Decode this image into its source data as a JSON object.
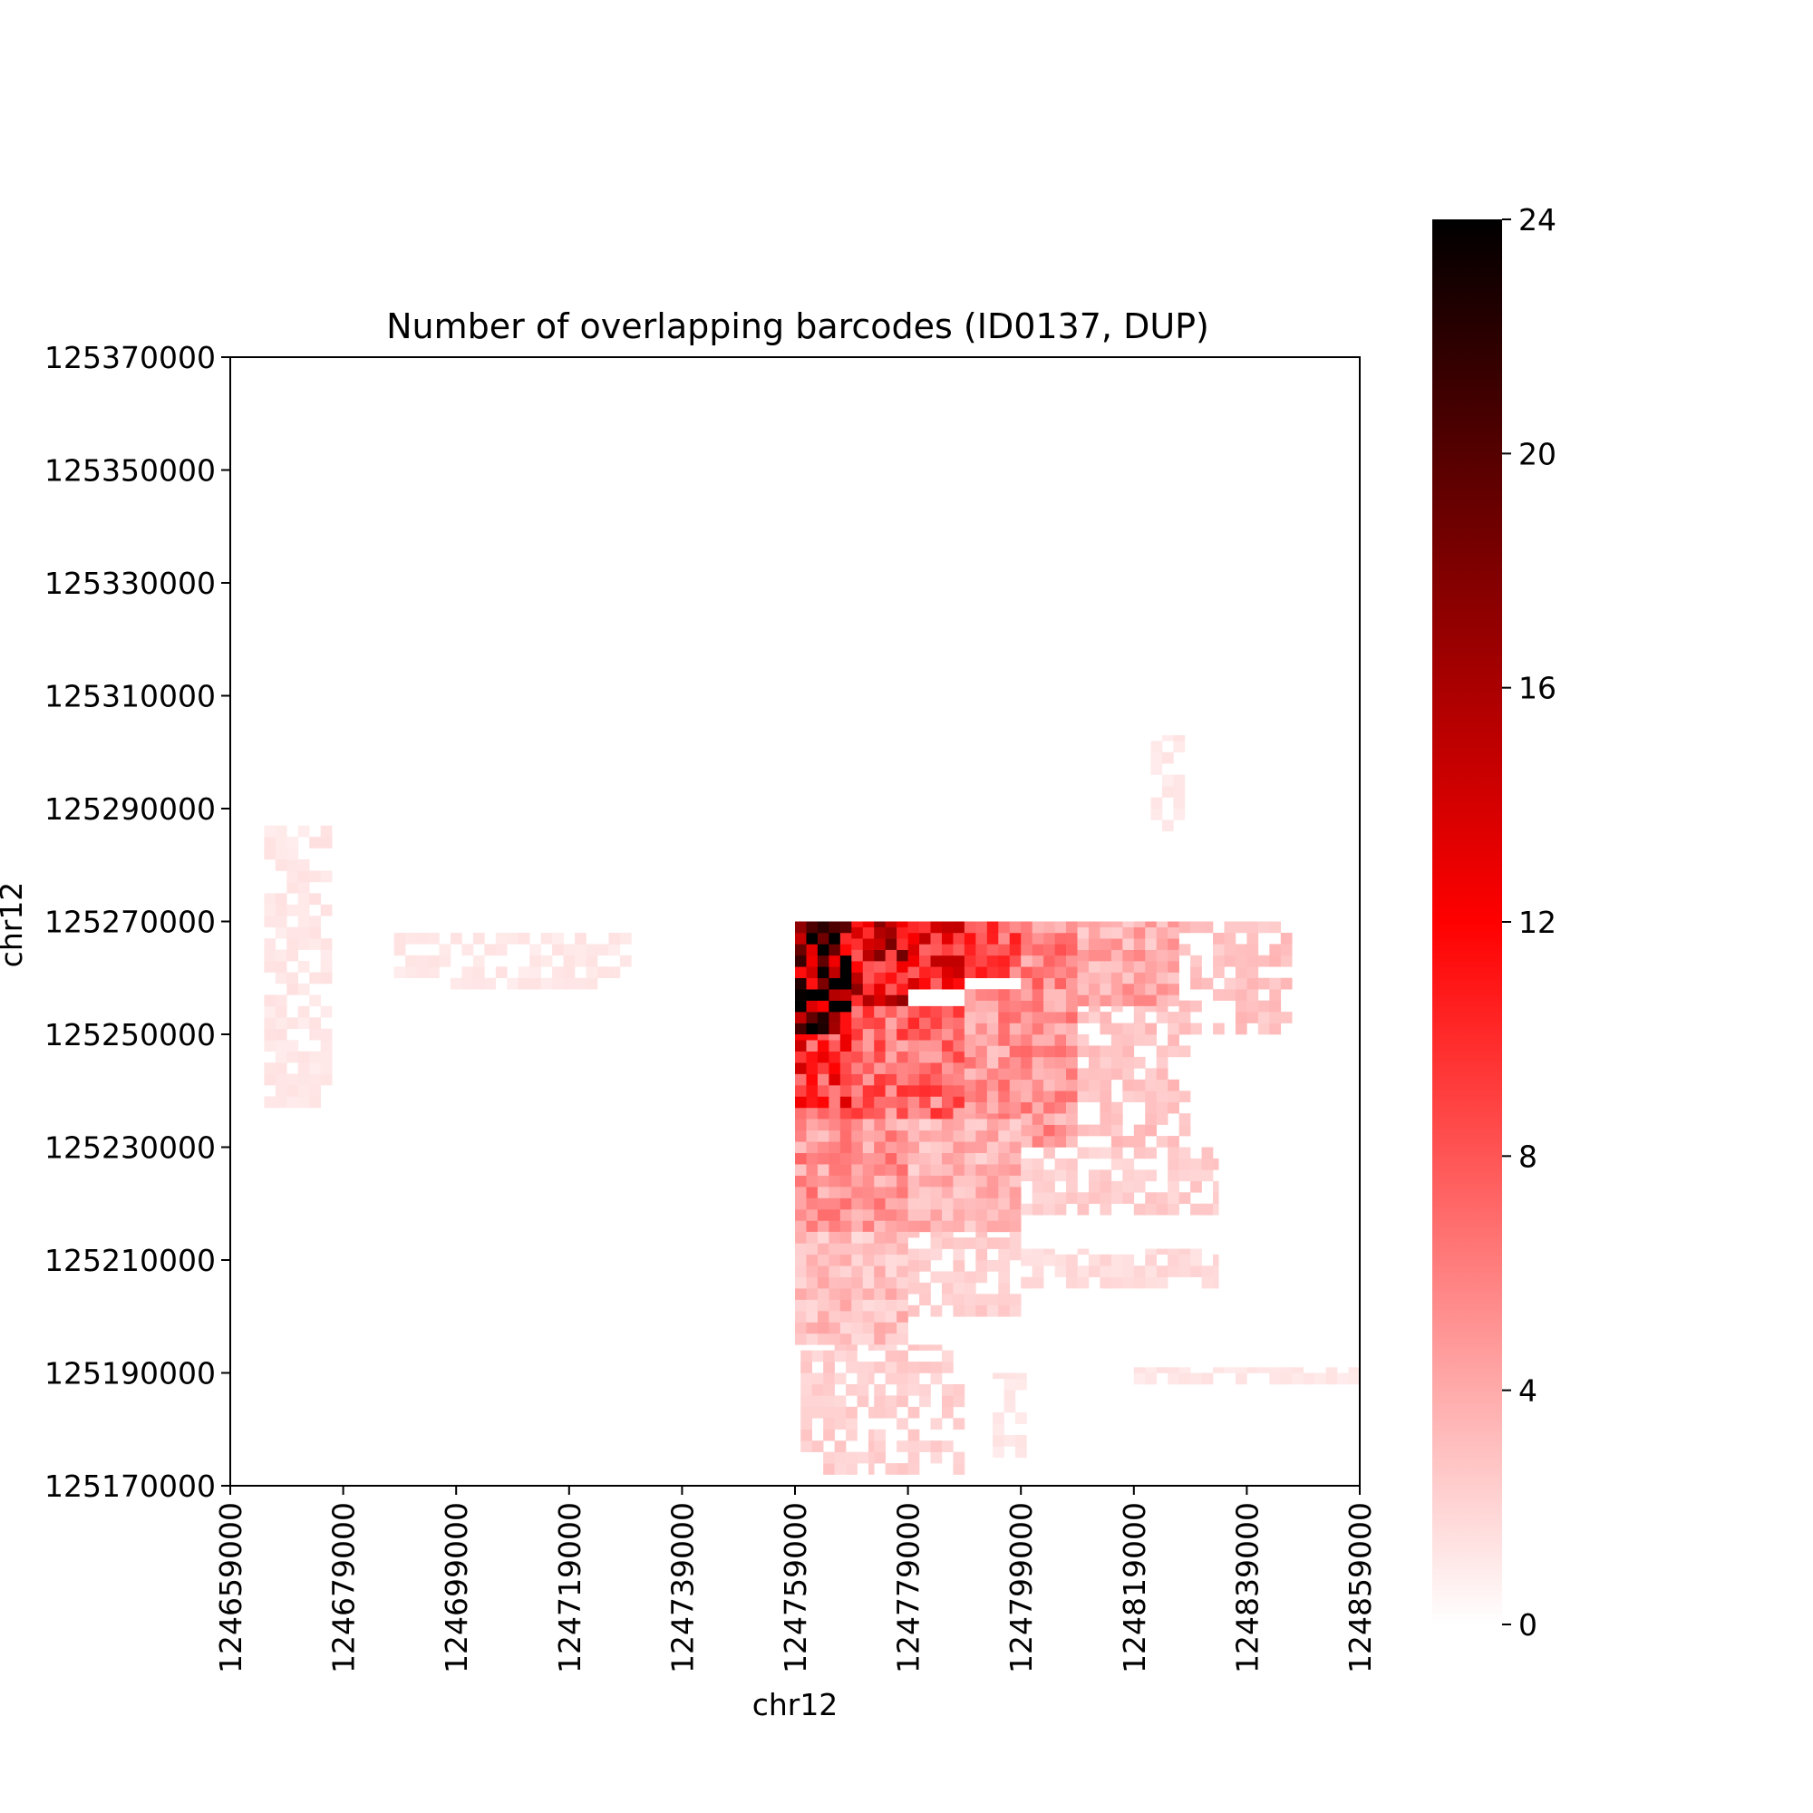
{
  "chart_data": {
    "type": "heatmap",
    "title": "Number of overlapping barcodes (ID0137, DUP)",
    "xlabel": "chr12",
    "ylabel": "chr12",
    "xlim": [
      124659000,
      124859000
    ],
    "ylim": [
      125170000,
      125370000
    ],
    "x_ticks": [
      "124659000",
      "124679000",
      "124699000",
      "124719000",
      "124739000",
      "124759000",
      "124779000",
      "124799000",
      "124819000",
      "124839000",
      "124859000"
    ],
    "y_ticks": [
      "125170000",
      "125190000",
      "125210000",
      "125230000",
      "125250000",
      "125270000",
      "125290000",
      "125310000",
      "125330000",
      "125350000",
      "125370000"
    ],
    "colorbar": {
      "range": [
        0,
        24
      ],
      "ticks": [
        "0",
        "4",
        "8",
        "12",
        "16",
        "20",
        "24"
      ],
      "colormap": [
        "#ffffff",
        "#ff0000",
        "#000000"
      ]
    },
    "grid": false,
    "regions": [
      {
        "x": [
          124759000,
          124769000
        ],
        "y": [
          125250000,
          125270000
        ],
        "level": 18
      },
      {
        "x": [
          124769000,
          124779000
        ],
        "y": [
          125255000,
          125270000
        ],
        "level": 13
      },
      {
        "x": [
          124779000,
          124789000
        ],
        "y": [
          125258000,
          125270000
        ],
        "level": 11
      },
      {
        "x": [
          124789000,
          124799000
        ],
        "y": [
          125260000,
          125270000
        ],
        "level": 8
      },
      {
        "x": [
          124799000,
          124809000
        ],
        "y": [
          125258000,
          125270000
        ],
        "level": 6
      },
      {
        "x": [
          124809000,
          124827000
        ],
        "y": [
          125255000,
          125270000
        ],
        "level": 4
      },
      {
        "x": [
          124827000,
          124847000
        ],
        "y": [
          125250000,
          125270000
        ],
        "level": 2.5
      },
      {
        "x": [
          124759000,
          124769000
        ],
        "y": [
          125235000,
          125250000
        ],
        "level": 10
      },
      {
        "x": [
          124769000,
          124789000
        ],
        "y": [
          125235000,
          125255000
        ],
        "level": 7
      },
      {
        "x": [
          124789000,
          124809000
        ],
        "y": [
          125230000,
          125258000
        ],
        "level": 5
      },
      {
        "x": [
          124809000,
          124829000
        ],
        "y": [
          125230000,
          125255000
        ],
        "level": 2.5
      },
      {
        "x": [
          124759000,
          124779000
        ],
        "y": [
          125215000,
          125235000
        ],
        "level": 5
      },
      {
        "x": [
          124779000,
          124799000
        ],
        "y": [
          125215000,
          125235000
        ],
        "level": 3.5
      },
      {
        "x": [
          124799000,
          124834000
        ],
        "y": [
          125218000,
          125230000
        ],
        "level": 2
      },
      {
        "x": [
          124759000,
          124779000
        ],
        "y": [
          125195000,
          125215000
        ],
        "level": 3
      },
      {
        "x": [
          124779000,
          124799000
        ],
        "y": [
          125200000,
          125215000
        ],
        "level": 2
      },
      {
        "x": [
          124799000,
          124834000
        ],
        "y": [
          125205000,
          125212000
        ],
        "level": 1.5
      },
      {
        "x": [
          124760000,
          124773000
        ],
        "y": [
          125172000,
          125195000
        ],
        "level": 2
      },
      {
        "x": [
          124773000,
          124789000
        ],
        "y": [
          125172000,
          125195000
        ],
        "level": 2
      },
      {
        "x": [
          124794000,
          124800000
        ],
        "y": [
          125175000,
          125190000
        ],
        "level": 1
      },
      {
        "x": [
          124665000,
          124677000
        ],
        "y": [
          125237000,
          125287000
        ],
        "level": 1
      },
      {
        "x": [
          124688000,
          124730000
        ],
        "y": [
          125258000,
          125268000
        ],
        "level": 1
      },
      {
        "x": [
          124822000,
          124828000
        ],
        "y": [
          125286000,
          125303000
        ],
        "level": 1
      },
      {
        "x": [
          124819000,
          124859000
        ],
        "y": [
          125188000,
          125191000
        ],
        "level": 1
      }
    ]
  }
}
